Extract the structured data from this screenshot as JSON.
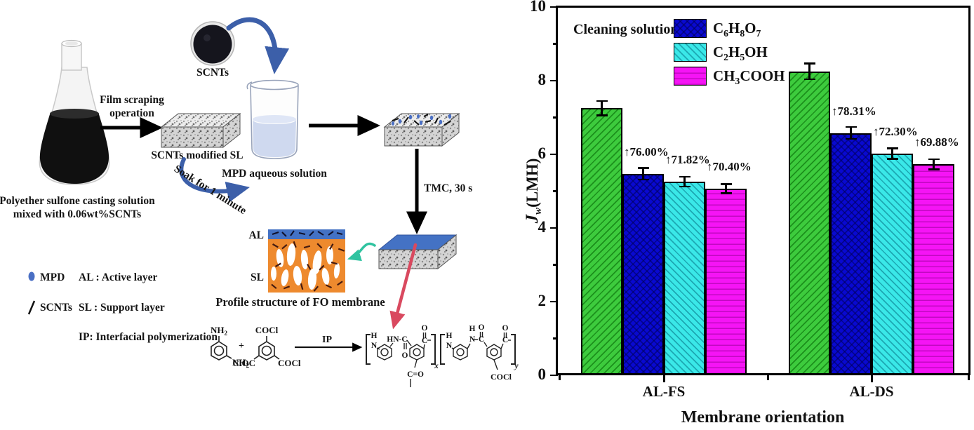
{
  "diagram": {
    "flask_caption": [
      "Polyether sulfone casting solution",
      "mixed with 0.06wt%SCNTs"
    ],
    "film_scraping": [
      "Film scraping",
      "operation"
    ],
    "scnts_label": "SCNTs",
    "scnts_modified_sl_label": "SCNTs modified SL",
    "mpd_solution_label": "MPD aqueous solution",
    "soak_label": "Soak for 1 minute",
    "tmc_label": "TMC, 30 s",
    "profile": {
      "al": "AL",
      "sl": "SL",
      "caption": "Profile structure of FO membrane"
    },
    "key": {
      "mpd": "MPD",
      "scnts": "SCNTs",
      "al": "AL : Active layer",
      "sl": "SL : Support layer",
      "ip": "IP: Interfacial polymerization"
    },
    "reaction": {
      "mpd_nh2_top": "NH2",
      "mpd_nh2_bottom": "NH2",
      "plus": "+",
      "tmc_cocl_top": "COCl",
      "tmc_cloc_left": "ClOC",
      "tmc_cocl_right": "COCl",
      "ip": "IP",
      "product": {
        "h1": "H",
        "n1": "N",
        "hnc": "HN-C",
        "o1": "O",
        "c1": "C",
        "o2": "O",
        "x": "x",
        "n2": "N",
        "h2": "H",
        "n3": "N",
        "h3": "H",
        "c2": "C",
        "o3": "O",
        "c3": "C",
        "o4": "O",
        "y": "y",
        "ceo": "C=O",
        "cocl": "COCl"
      }
    }
  },
  "chart": {
    "legend_title": "Cleaning solution:",
    "ylabel": {
      "j": "J",
      "sub": "w",
      "unit": "(LMH)"
    },
    "xlabel": "Membrane orientation"
  },
  "chart_data": {
    "type": "bar",
    "title": "",
    "xlabel": "Membrane orientation",
    "ylabel": "Jw(LMH)",
    "ylim": [
      0,
      10
    ],
    "yticks": [
      0,
      2,
      4,
      6,
      8,
      10
    ],
    "yticks_minor": [
      1,
      3,
      5,
      7,
      9
    ],
    "grid": false,
    "legend_title": "Cleaning solution:",
    "legend_position": "top-left inside",
    "categories": [
      "AL-FS",
      "AL-DS"
    ],
    "series": [
      {
        "name": "",
        "color": "#3dcb3d",
        "hatch": "/",
        "values": [
          7.25,
          8.25
        ],
        "errors": [
          0.2,
          0.22
        ]
      },
      {
        "name": "C6H8O7",
        "color": "#0909d0",
        "hatch": "x",
        "values": [
          5.47,
          6.58
        ],
        "errors": [
          0.16,
          0.17
        ]
      },
      {
        "name": "C2H5OH",
        "color": "#3ae8e8",
        "hatch": "\\",
        "values": [
          5.26,
          6.02
        ],
        "errors": [
          0.14,
          0.15
        ]
      },
      {
        "name": "CH3COOH",
        "color": "#f514f5",
        "hatch": "-",
        "values": [
          5.07,
          5.73
        ],
        "errors": [
          0.13,
          0.14
        ]
      }
    ],
    "annotation_prefix": "↑",
    "annotations": [
      [
        "76.00%",
        "71.82%",
        "70.40%"
      ],
      [
        "78.31%",
        "72.30%",
        "69.88%"
      ]
    ]
  }
}
